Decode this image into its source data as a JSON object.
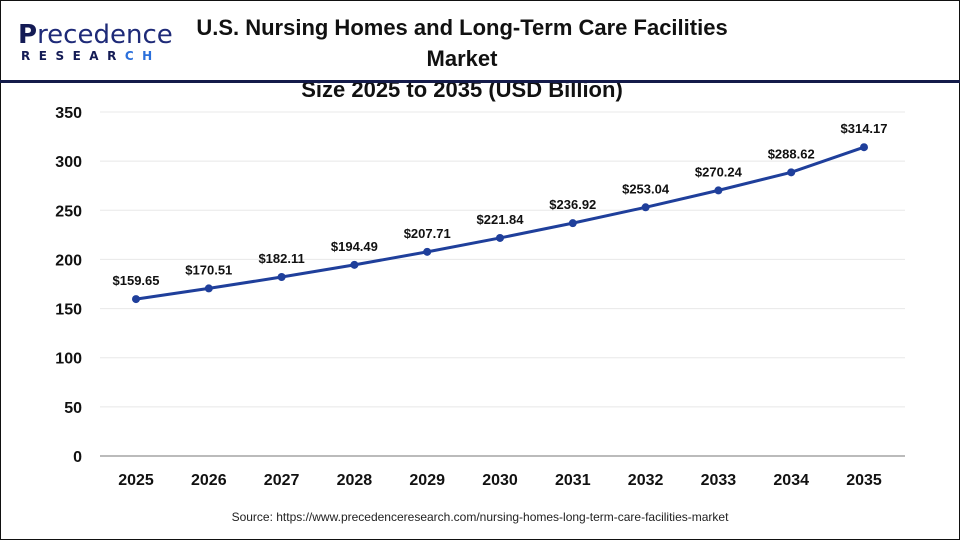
{
  "logo": {
    "text_main": "Precedence",
    "text_sub": "RESEARCH"
  },
  "source": "Source: https://www.precedenceresearch.com/nursing-homes-long-term-care-facilities-market",
  "colors": {
    "line": "#1f3f9b",
    "header_rule": "#141b4a",
    "grid": "#e8e8e8"
  },
  "chart_data": {
    "type": "line",
    "title": "U.S. Nursing Homes and Long-Term Care Facilities Market Size 2025 to 2035 (USD Billion)",
    "title_lines": [
      "U.S. Nursing Homes and Long-Term Care Facilities Market",
      "Size 2025 to 2035 (USD Billion)"
    ],
    "categories": [
      "2025",
      "2026",
      "2027",
      "2028",
      "2029",
      "2030",
      "2031",
      "2032",
      "2033",
      "2034",
      "2035"
    ],
    "values": [
      159.65,
      170.51,
      182.11,
      194.49,
      207.71,
      221.84,
      236.92,
      253.04,
      270.24,
      288.62,
      314.17
    ],
    "data_labels": [
      "$159.65",
      "$170.51",
      "$182.11",
      "$194.49",
      "$207.71",
      "$221.84",
      "$236.92",
      "$253.04",
      "$270.24",
      "$288.62",
      "$314.17"
    ],
    "yticks": [
      0,
      50,
      100,
      150,
      200,
      250,
      300,
      350
    ],
    "ylim": [
      0,
      350
    ],
    "xlabel": "",
    "ylabel": "",
    "grid": true,
    "legend": "none"
  }
}
